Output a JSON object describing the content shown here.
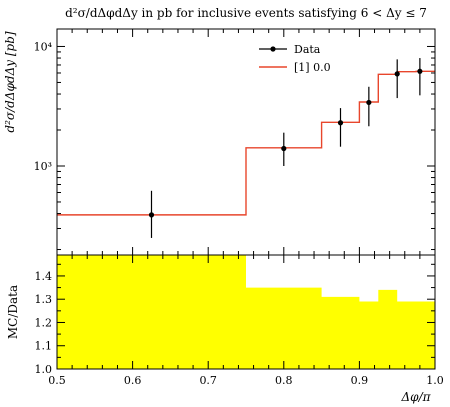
{
  "chart_data": [
    {
      "type": "line",
      "panel": "main",
      "title": "d²σ/dΔφdΔy in pb for inclusive events satisfying 6 < Δy ≤ 7",
      "ylabel": "d²σ/dΔφdΔy [pb]",
      "xlim": [
        0.5,
        1.0
      ],
      "ylim": [
        180,
        14000
      ],
      "yscale": "log",
      "y_tick_labels": [
        "10³",
        "10⁴"
      ],
      "y_tick_values": [
        1000,
        10000
      ],
      "legend_position": "top-right",
      "series": [
        {
          "name": "Data",
          "style": "points-with-errorbars",
          "color": "#000000",
          "x": [
            0.625,
            0.8,
            0.875,
            0.9125,
            0.95,
            0.98
          ],
          "y": [
            390,
            1400,
            2300,
            3400,
            5900,
            6200
          ],
          "y_low": [
            250,
            1000,
            1450,
            2150,
            3700,
            3900
          ],
          "y_high": [
            620,
            1900,
            3050,
            4600,
            7800,
            8000
          ]
        },
        {
          "name": "[1] 0.0",
          "style": "step",
          "color": "#e8462c",
          "bin_edges": [
            0.5,
            0.75,
            0.85,
            0.9,
            0.925,
            0.95,
            0.975,
            1.0
          ],
          "values": [
            390,
            1420,
            2320,
            3430,
            5850,
            6150,
            6200
          ]
        }
      ]
    },
    {
      "type": "area",
      "panel": "ratio",
      "xlabel": "Δφ/π",
      "ylabel": "MC/Data",
      "xlim": [
        0.5,
        1.0
      ],
      "ylim": [
        1.0,
        1.49
      ],
      "x_ticks": [
        0.5,
        0.6,
        0.7,
        0.8,
        0.9,
        1.0
      ],
      "y_ticks": [
        1.0,
        1.1,
        1.2,
        1.3,
        1.4
      ],
      "fill_color": "#ffff00",
      "bin_edges": [
        0.5,
        0.75,
        0.85,
        0.9,
        0.925,
        0.95,
        0.975,
        1.0
      ],
      "values": [
        1.49,
        1.35,
        1.31,
        1.29,
        1.34,
        1.29,
        1.29
      ]
    }
  ]
}
